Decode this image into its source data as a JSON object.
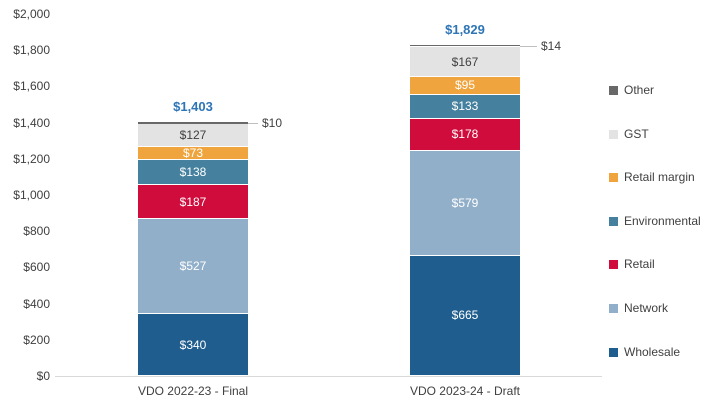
{
  "chart_data": {
    "type": "bar",
    "stacked": true,
    "title": "",
    "categories": [
      "VDO 2022-23 - Final",
      "VDO 2023-24 - Draft"
    ],
    "series": [
      {
        "name": "Wholesale",
        "color": "#1F5D8F",
        "label_color": "#FFFFFF",
        "values": [
          340,
          665
        ]
      },
      {
        "name": "Network",
        "color": "#92AFCA",
        "label_color": "#FFFFFF",
        "values": [
          527,
          579
        ]
      },
      {
        "name": "Retail",
        "color": "#D00C3C",
        "label_color": "#FFFFFF",
        "values": [
          187,
          178
        ]
      },
      {
        "name": "Environmental",
        "color": "#45819F",
        "label_color": "#FFFFFF",
        "values": [
          138,
          133
        ]
      },
      {
        "name": "Retail margin",
        "color": "#F0A43E",
        "label_color": "#FFFFFF",
        "values": [
          73,
          95
        ]
      },
      {
        "name": "GST",
        "color": "#E3E3E3",
        "label_color": "#404040",
        "values": [
          127,
          167
        ]
      },
      {
        "name": "Other",
        "color": "#686868",
        "label_color": "#404040",
        "values": [
          10,
          14
        ],
        "label_outside": true
      }
    ],
    "totals": [
      "$1,403",
      "$1,829"
    ],
    "other_callout_labels": [
      "$10",
      "$14"
    ],
    "segment_label_prefix": "$",
    "y_axis": {
      "min": 0,
      "max": 2000,
      "step": 200,
      "tick_labels": [
        "$0",
        "$200",
        "$400",
        "$600",
        "$800",
        "$1,000",
        "$1,200",
        "$1,400",
        "$1,600",
        "$1,800",
        "$2,000"
      ]
    },
    "legend": {
      "position": "right",
      "items": [
        "Other",
        "GST",
        "Retail margin",
        "Environmental",
        "Retail",
        "Network",
        "Wholesale"
      ]
    },
    "grid": false
  },
  "colors": {
    "total_label": "#2E75B6",
    "axis_text": "#404040",
    "leader_line": "#BFBFBF",
    "baseline": "#D9D9D9",
    "background": "#FFFFFF"
  }
}
